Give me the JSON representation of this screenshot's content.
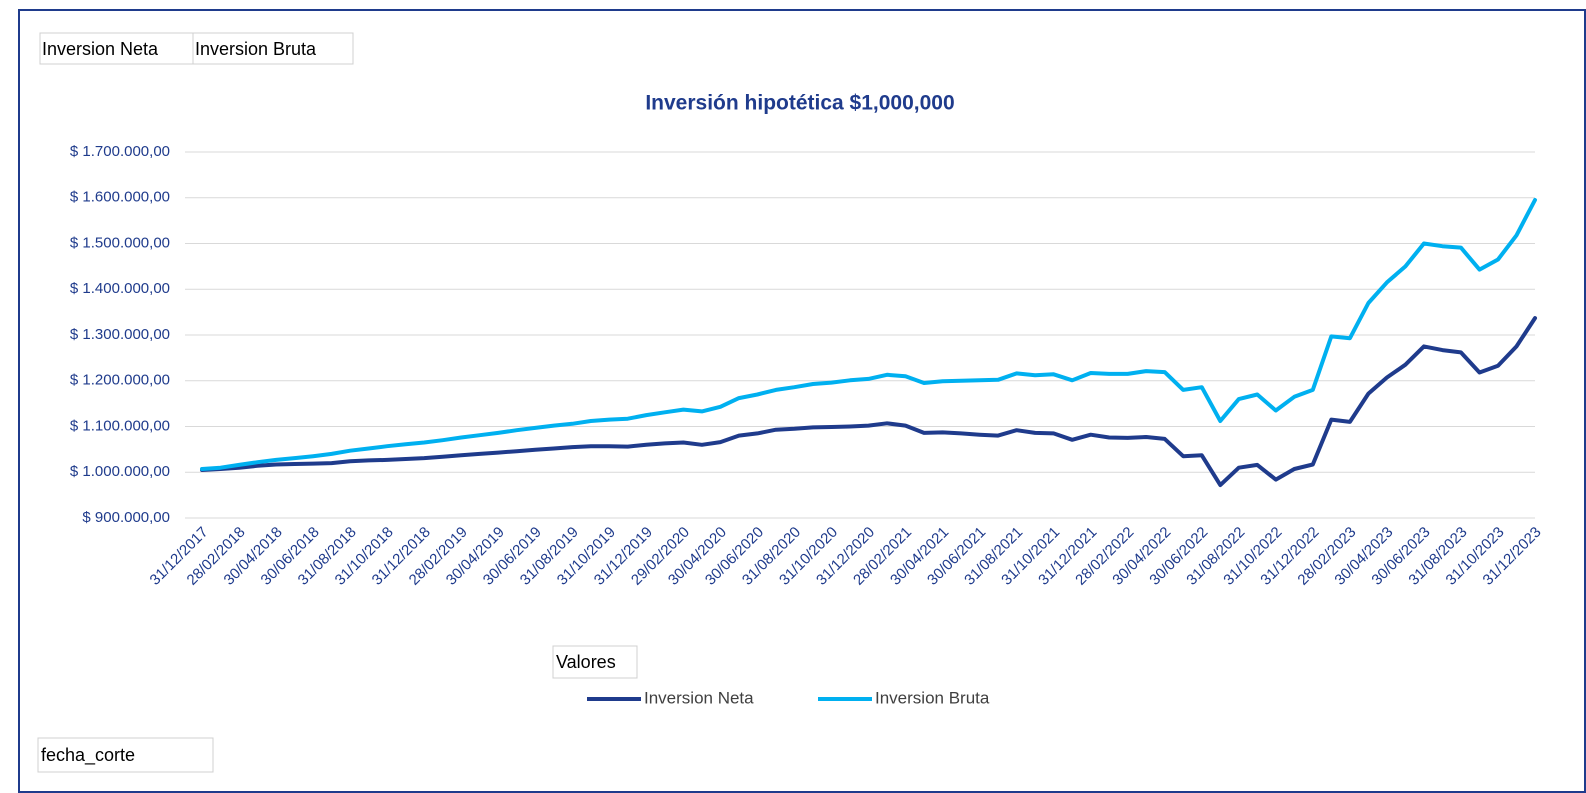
{
  "pivot_fields": {
    "series_buttons": [
      "Inversion Neta",
      "Inversion Bruta"
    ],
    "values_button": "Valores",
    "axis_button": "fecha_corte"
  },
  "chart_data": {
    "type": "line",
    "title": "Inversión hipotética $1,000,000",
    "categories": [
      "31/12/2017",
      null,
      "28/02/2018",
      null,
      "30/04/2018",
      null,
      "30/06/2018",
      null,
      "31/08/2018",
      null,
      "31/10/2018",
      null,
      "31/12/2018",
      null,
      "28/02/2019",
      null,
      "30/04/2019",
      null,
      "30/06/2019",
      null,
      "31/08/2019",
      null,
      "31/10/2019",
      null,
      "31/12/2019",
      null,
      "29/02/2020",
      null,
      "30/04/2020",
      null,
      "30/06/2020",
      null,
      "31/08/2020",
      null,
      "31/10/2020",
      null,
      "31/12/2020",
      null,
      "28/02/2021",
      null,
      "30/04/2021",
      null,
      "30/06/2021",
      null,
      "31/08/2021",
      null,
      "31/10/2021",
      null,
      "31/12/2021",
      null,
      "28/02/2022",
      null,
      "30/04/2022",
      null,
      "30/06/2022",
      null,
      "31/08/2022",
      null,
      "31/10/2022",
      null,
      "31/12/2022",
      null,
      "28/02/2023",
      null,
      "30/04/2023",
      null,
      "30/06/2023",
      null,
      "31/08/2023",
      null,
      "31/10/2023",
      null,
      "31/12/2023"
    ],
    "series": [
      {
        "name": "Inversion Neta",
        "color": "#1f3b8c",
        "values": [
          1005000,
          1007000,
          1010000,
          1014000,
          1017000,
          1018000,
          1019000,
          1020000,
          1024000,
          1026000,
          1027000,
          1029000,
          1031000,
          1034000,
          1037000,
          1040000,
          1043000,
          1046000,
          1049000,
          1052000,
          1055000,
          1057000,
          1057000,
          1056000,
          1060000,
          1063000,
          1065000,
          1060000,
          1066000,
          1080000,
          1085000,
          1093000,
          1095000,
          1098000,
          1099000,
          1100000,
          1102000,
          1107000,
          1102000,
          1086000,
          1087000,
          1085000,
          1082000,
          1080000,
          1092000,
          1086000,
          1085000,
          1071000,
          1082000,
          1076000,
          1075000,
          1077000,
          1073000,
          1035000,
          1037000,
          972000,
          1010000,
          1016000,
          984000,
          1007000,
          1017000,
          1115000,
          1110000,
          1172000,
          1207000,
          1235000,
          1275000,
          1267000,
          1262000,
          1218000,
          1233000,
          1275000,
          1337000
        ]
      },
      {
        "name": "Inversion Bruta",
        "color": "#00b0f0",
        "values": [
          1007000,
          1010000,
          1016000,
          1022000,
          1027000,
          1031000,
          1035000,
          1040000,
          1047000,
          1052000,
          1057000,
          1061000,
          1065000,
          1070000,
          1076000,
          1081000,
          1086000,
          1092000,
          1097000,
          1102000,
          1106000,
          1112000,
          1115000,
          1117000,
          1125000,
          1131000,
          1137000,
          1133000,
          1143000,
          1162000,
          1170000,
          1180000,
          1186000,
          1193000,
          1196000,
          1201000,
          1204000,
          1213000,
          1210000,
          1195000,
          1199000,
          1200000,
          1201000,
          1202000,
          1216000,
          1212000,
          1214000,
          1201000,
          1217000,
          1215000,
          1215000,
          1221000,
          1219000,
          1180000,
          1186000,
          1112000,
          1160000,
          1170000,
          1135000,
          1165000,
          1180000,
          1297000,
          1293000,
          1370000,
          1415000,
          1450000,
          1500000,
          1494000,
          1491000,
          1443000,
          1465000,
          1518000,
          1595000
        ]
      }
    ],
    "ylim": [
      900000,
      1700000
    ],
    "yticks": [
      {
        "value": 900000,
        "label": "$ 900.000,00"
      },
      {
        "value": 1000000,
        "label": "$ 1.000.000,00"
      },
      {
        "value": 1100000,
        "label": "$ 1.100.000,00"
      },
      {
        "value": 1200000,
        "label": "$ 1.200.000,00"
      },
      {
        "value": 1300000,
        "label": "$ 1.300.000,00"
      },
      {
        "value": 1400000,
        "label": "$ 1.400.000,00"
      },
      {
        "value": 1500000,
        "label": "$ 1.500.000,00"
      },
      {
        "value": 1600000,
        "label": "$ 1.600.000,00"
      },
      {
        "value": 1700000,
        "label": "$ 1.700.000,00"
      }
    ],
    "grid": true,
    "legend": "bottom"
  }
}
